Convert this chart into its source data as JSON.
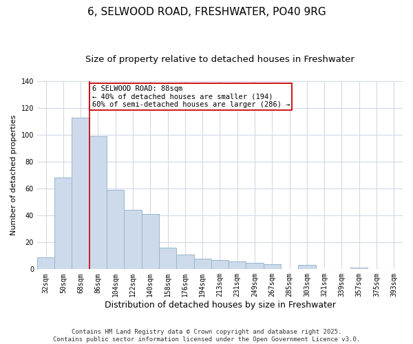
{
  "title": "6, SELWOOD ROAD, FRESHWATER, PO40 9RG",
  "subtitle": "Size of property relative to detached houses in Freshwater",
  "xlabel": "Distribution of detached houses by size in Freshwater",
  "ylabel": "Number of detached properties",
  "bar_labels": [
    "32sqm",
    "50sqm",
    "68sqm",
    "86sqm",
    "104sqm",
    "122sqm",
    "140sqm",
    "158sqm",
    "176sqm",
    "194sqm",
    "213sqm",
    "231sqm",
    "249sqm",
    "267sqm",
    "285sqm",
    "303sqm",
    "321sqm",
    "339sqm",
    "357sqm",
    "375sqm",
    "393sqm"
  ],
  "bar_values": [
    9,
    68,
    113,
    99,
    59,
    44,
    41,
    16,
    11,
    8,
    7,
    6,
    5,
    4,
    0,
    3,
    0,
    0,
    1,
    0,
    0
  ],
  "bar_color": "#ccdaeb",
  "bar_edgecolor": "#9ab5cc",
  "vline_color": "#cc0000",
  "vline_index": 3,
  "ylim": [
    0,
    140
  ],
  "annotation_text_line1": "6 SELWOOD ROAD: 88sqm",
  "annotation_text_line2": "← 40% of detached houses are smaller (194)",
  "annotation_text_line3": "60% of semi-detached houses are larger (286) →",
  "annotation_box_color": "#cc0000",
  "annotation_box_facecolor": "white",
  "footer_line1": "Contains HM Land Registry data © Crown copyright and database right 2025.",
  "footer_line2": "Contains public sector information licensed under the Open Government Licence v3.0.",
  "background_color": "#ffffff",
  "plot_bg_color": "#ffffff",
  "title_fontsize": 11,
  "subtitle_fontsize": 9.5,
  "xlabel_fontsize": 9,
  "ylabel_fontsize": 8,
  "tick_fontsize": 7,
  "annotation_fontsize": 7.5,
  "footer_fontsize": 6.5,
  "grid_color": "#d0d8e8"
}
